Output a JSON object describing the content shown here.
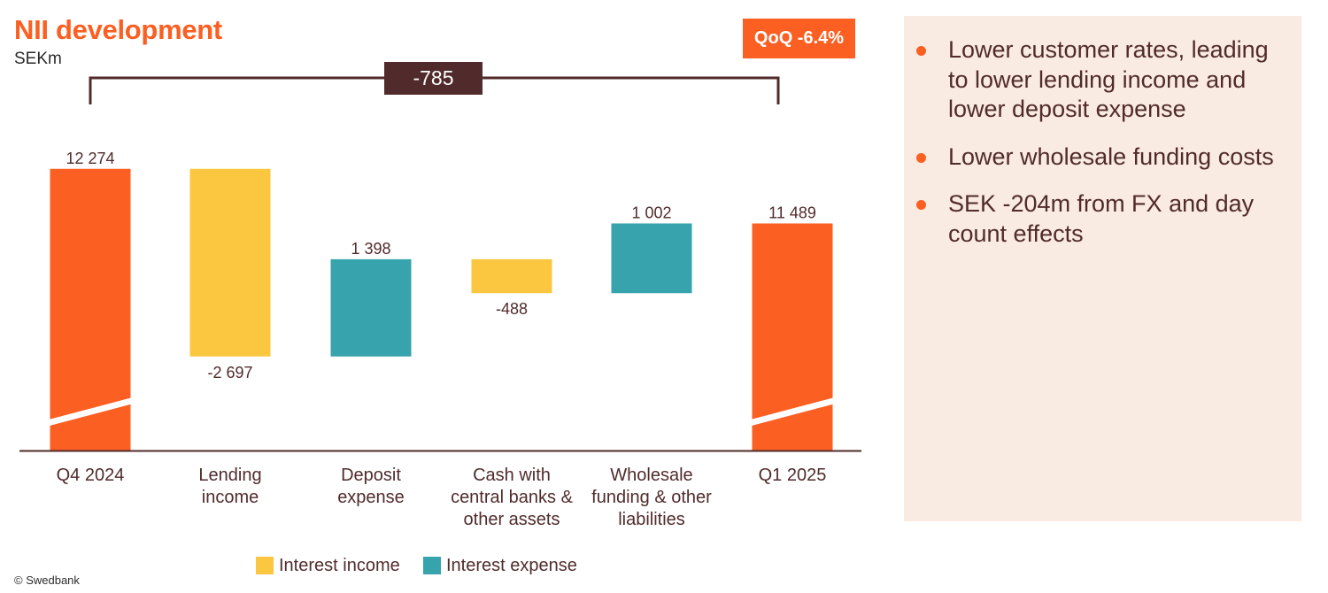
{
  "header": {
    "title": "NII development",
    "unit": "SEKm",
    "qoq_badge": "QoQ -6.4%"
  },
  "chart_data": {
    "type": "waterfall",
    "categories": [
      "Q4 2024",
      "Lending income",
      "Deposit expense",
      "Cash with central banks & other assets",
      "Wholesale funding & other liabilities",
      "Q1 2025"
    ],
    "category_lines": [
      [
        "Q4 2024"
      ],
      [
        "Lending",
        "income"
      ],
      [
        "Deposit",
        "expense"
      ],
      [
        "Cash with",
        "central banks &",
        "other assets"
      ],
      [
        "Wholesale",
        "funding & other",
        "liabilities"
      ],
      [
        "Q1 2025"
      ]
    ],
    "values": [
      12274,
      -2697,
      1398,
      -488,
      1002,
      11489
    ],
    "value_labels": [
      "12 274",
      "-2 697",
      "1 398",
      "-488",
      "1 002",
      "11 489"
    ],
    "bar_kinds": [
      "total",
      "interest_income",
      "interest_expense",
      "interest_income",
      "interest_expense",
      "total"
    ],
    "total_change": {
      "label": "-785",
      "value": -785
    },
    "axis_break": true,
    "ylim": [
      9250,
      12500
    ],
    "legend": [
      {
        "key": "interest_income",
        "label": "Interest income"
      },
      {
        "key": "interest_expense",
        "label": "Interest expense"
      }
    ],
    "colors": {
      "total": "#fb5f22",
      "interest_income": "#fbc740",
      "interest_expense": "#37a3ad",
      "bracket": "#512b2b"
    }
  },
  "panel": {
    "bullets": [
      "Lower customer rates, leading to lower lending income and lower deposit expense",
      "Lower wholesale funding costs",
      "SEK -204m from FX and day count effects"
    ]
  },
  "footer": {
    "copyright": "© Swedbank"
  }
}
